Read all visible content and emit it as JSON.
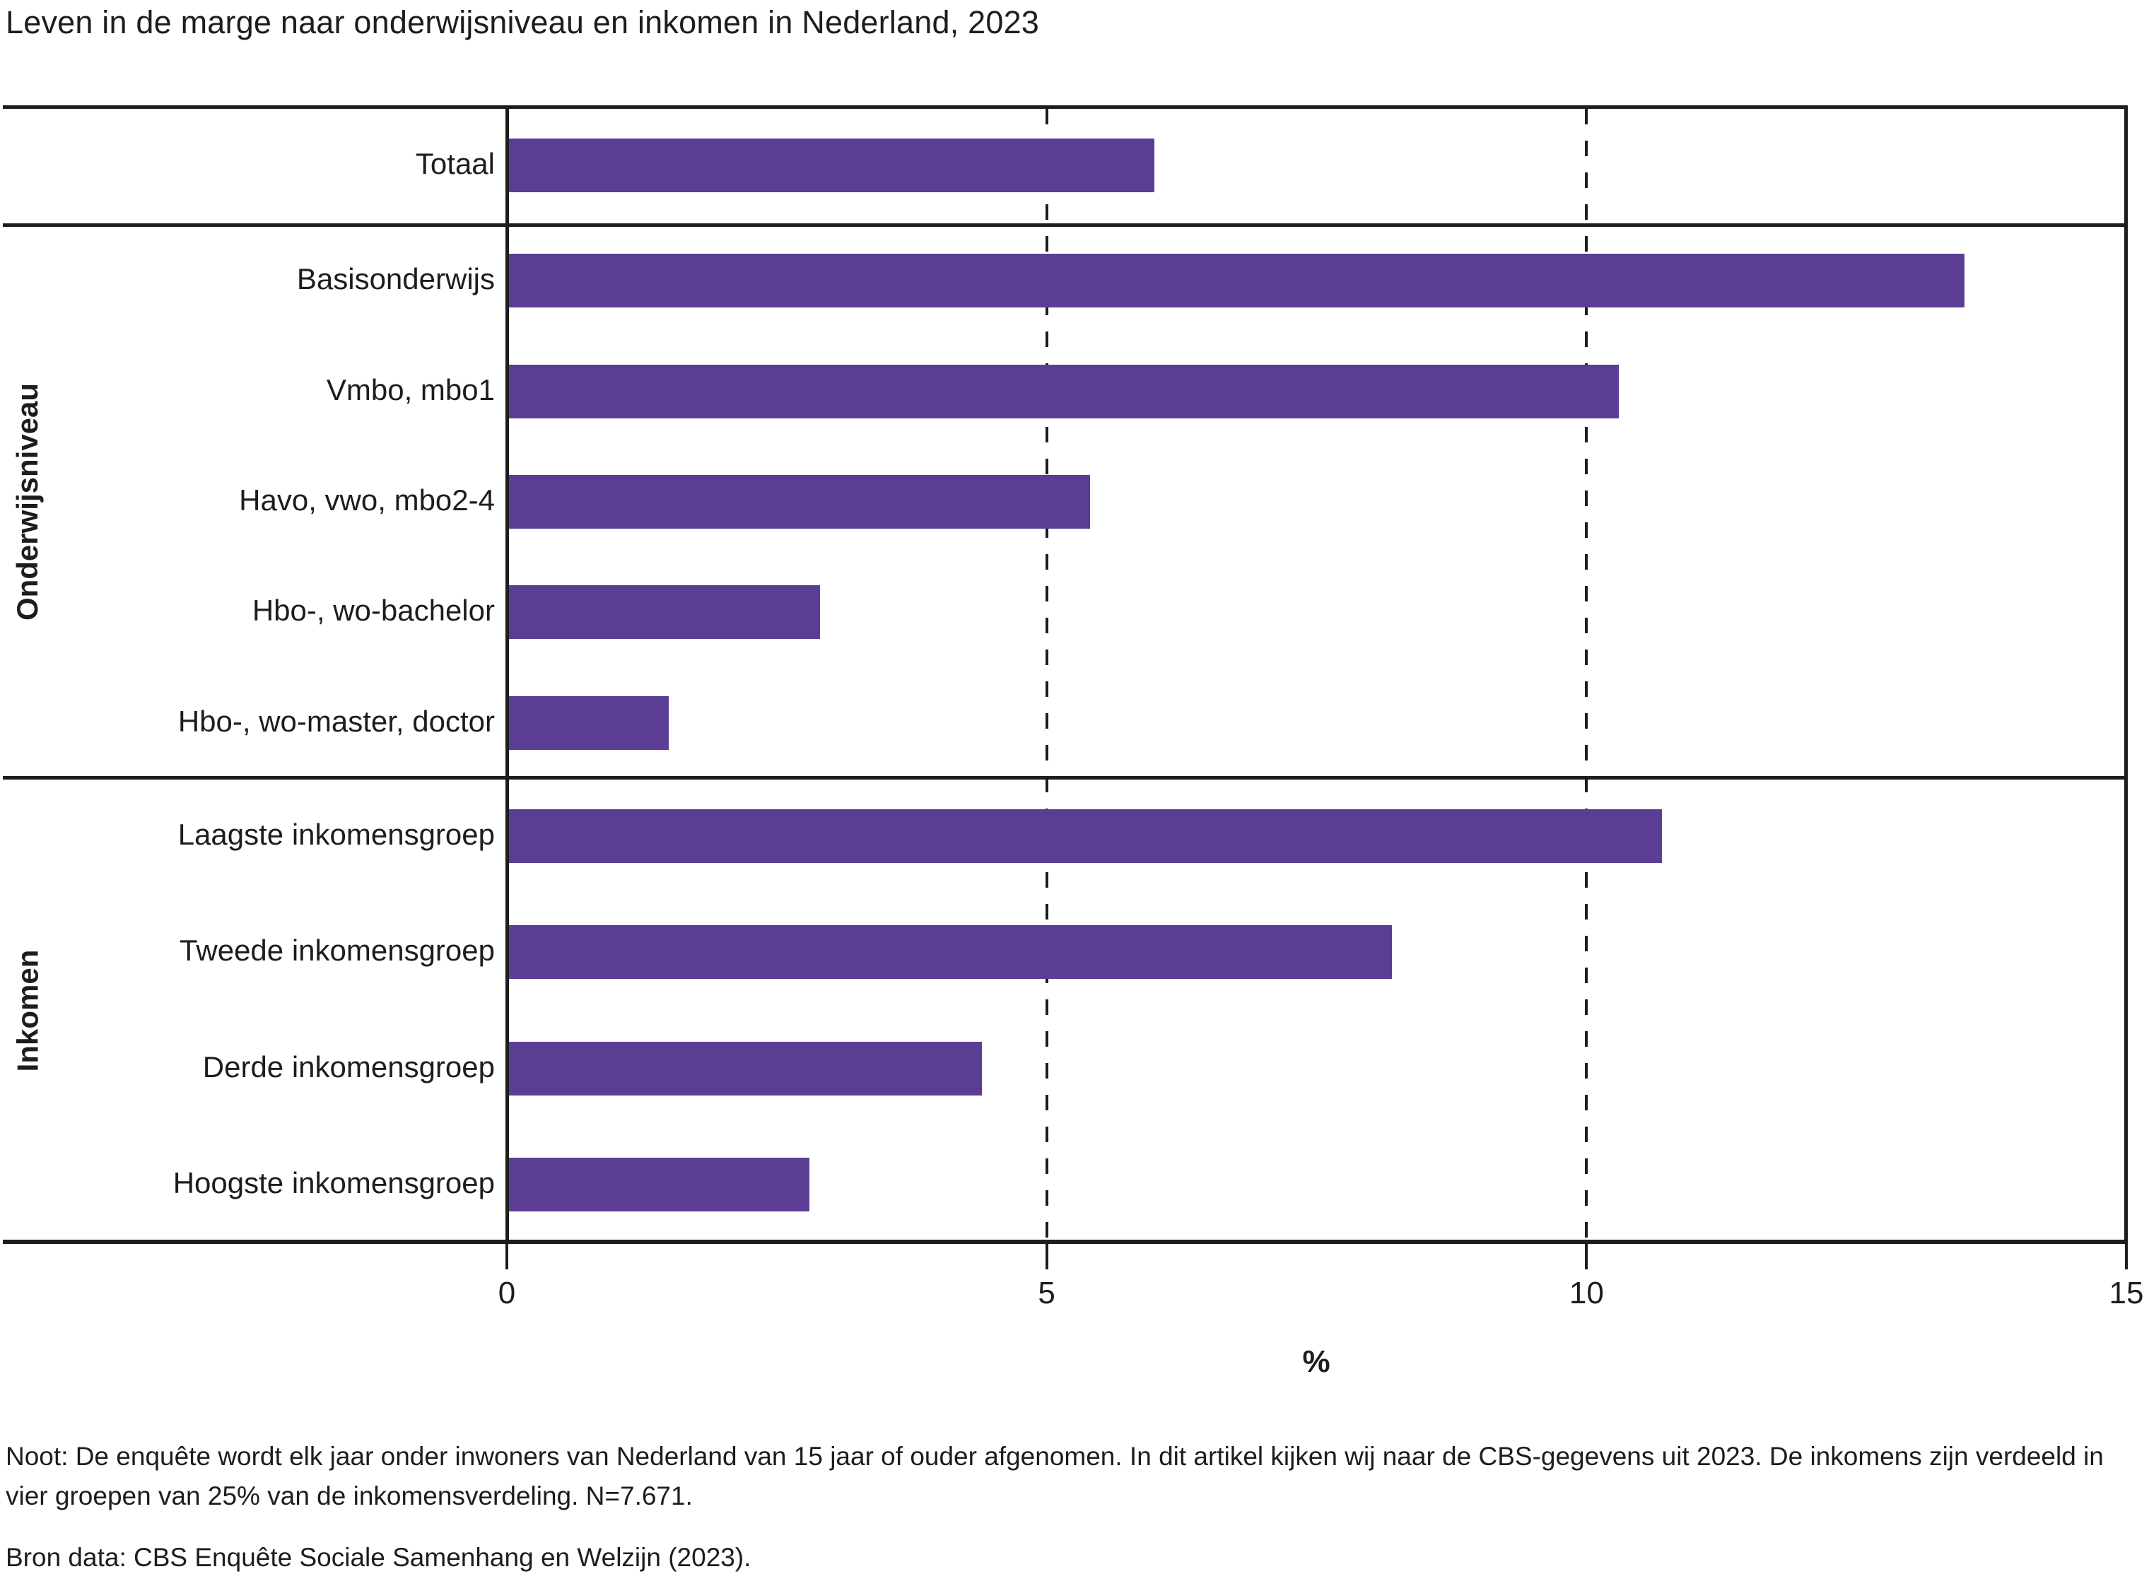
{
  "title": "Leven in de marge naar onderwijsniveau en inkomen in Nederland, 2023",
  "notes": "Noot: De enquête wordt elk jaar onder inwoners van Nederland van 15 jaar of ouder afgenomen. In dit artikel kijken wij naar de CBS-gegevens uit 2023. De inkomens zijn verdeeld in vier groepen van 25% van de inkomensverdeling. N=7.671.",
  "source": "Bron data: CBS Enquête Sociale Samenhang en Welzijn (2023).",
  "chart_data": {
    "type": "bar",
    "orientation": "horizontal",
    "title": "Leven in de marge naar onderwijsniveau en inkomen in Nederland, 2023",
    "xlabel": "%",
    "xlim": [
      0,
      15
    ],
    "xticks": [
      {
        "value": 0,
        "label": "0"
      },
      {
        "value": 5,
        "label": "5"
      },
      {
        "value": 10,
        "label": "10"
      },
      {
        "value": 15,
        "label": "15"
      }
    ],
    "dashed_gridlines_at": [
      5,
      10
    ],
    "grid": "dashed-vertical",
    "legend": "none",
    "bar_color": "#5b3d94",
    "line_color": "#1d1d1b",
    "groups": [
      {
        "label": "",
        "items": [
          {
            "category": "Totaal",
            "value": 6.0
          }
        ]
      },
      {
        "label": "Onderwijsniveau",
        "items": [
          {
            "category": "Basisonderwijs",
            "value": 13.5
          },
          {
            "category": "Vmbo, mbo1",
            "value": 10.3
          },
          {
            "category": "Havo, vwo, mbo2-4",
            "value": 5.4
          },
          {
            "category": "Hbo-, wo-bachelor",
            "value": 2.9
          },
          {
            "category": "Hbo-, wo-master, doctor",
            "value": 1.5
          }
        ]
      },
      {
        "label": "Inkomen",
        "items": [
          {
            "category": "Laagste inkomensgroep",
            "value": 10.7
          },
          {
            "category": "Tweede inkomensgroep",
            "value": 8.2
          },
          {
            "category": "Derde inkomensgroep",
            "value": 4.4
          },
          {
            "category": "Hoogste inkomensgroep",
            "value": 2.8
          }
        ]
      }
    ]
  }
}
